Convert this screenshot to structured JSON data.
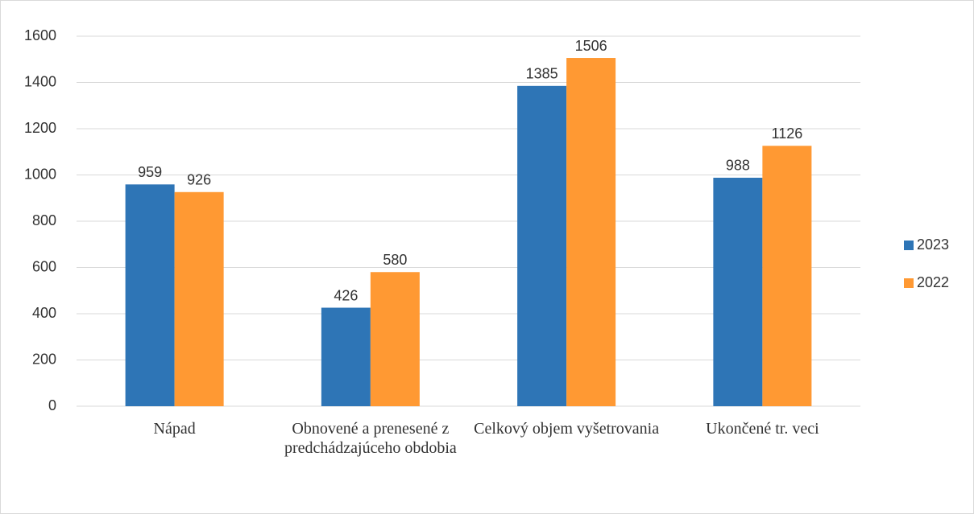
{
  "chart_data": {
    "type": "bar",
    "categories": [
      "Nápad",
      "Obnovené a prenesené z predchádzajúceho obdobia",
      "Celkový objem vyšetrovania",
      "Ukončené tr. veci"
    ],
    "series": [
      {
        "name": "2023",
        "color": "#2e75b6",
        "values": [
          959,
          426,
          1385,
          988
        ]
      },
      {
        "name": "2022",
        "color": "#ff9933",
        "values": [
          926,
          580,
          1506,
          1126
        ]
      }
    ],
    "ylim": [
      0,
      1600
    ],
    "yticks": [
      0,
      200,
      400,
      600,
      800,
      1000,
      1200,
      1400,
      1600
    ],
    "grid": true,
    "legend": "right"
  }
}
